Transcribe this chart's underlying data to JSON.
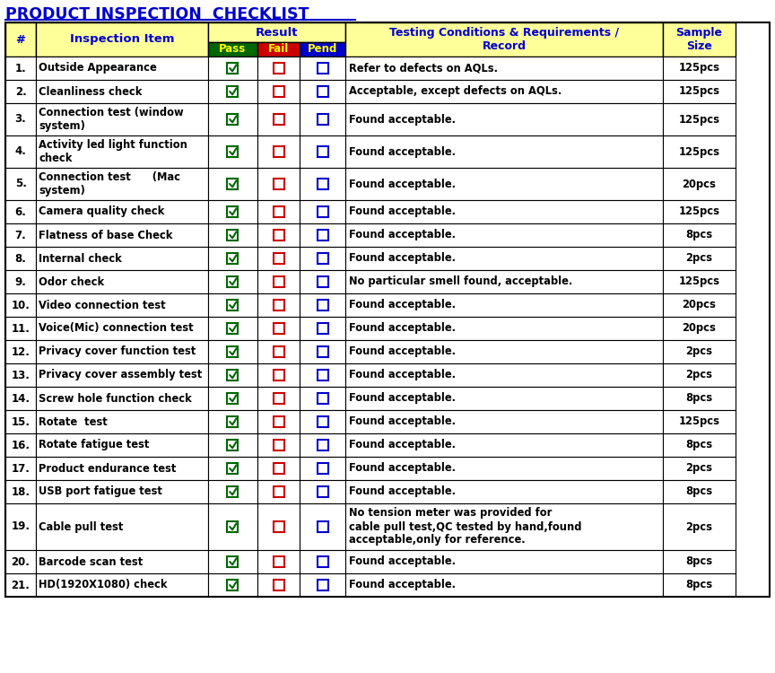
{
  "title": "PRODUCT INSPECTION  CHECKLIST",
  "title_color": "#0000CC",
  "header_bg": "#FFFF99",
  "header_text_color": "#0000CC",
  "pass_bg": "#006600",
  "fail_bg": "#CC0000",
  "pend_bg": "#0000CC",
  "sub_text_color": "#FFFF00",
  "check_color": "#006600",
  "fail_color": "#CC0000",
  "pend_color": "#0000CC",
  "rows": [
    {
      "num": "1.",
      "item": "Outside Appearance",
      "condition": "Refer to defects on AQLs.",
      "sample": "125pcs",
      "lines": 1
    },
    {
      "num": "2.",
      "item": "Cleanliness check",
      "condition": "Acceptable, except defects on AQLs.",
      "sample": "125pcs",
      "lines": 1
    },
    {
      "num": "3.",
      "item": "Connection test (window\nsystem)",
      "condition": "Found acceptable.",
      "sample": "125pcs",
      "lines": 2
    },
    {
      "num": "4.",
      "item": "Activity led light function\ncheck",
      "condition": "Found acceptable.",
      "sample": "125pcs",
      "lines": 2
    },
    {
      "num": "5.",
      "item": "Connection test      (Mac\nsystem)",
      "condition": "Found acceptable.",
      "sample": "20pcs",
      "lines": 2
    },
    {
      "num": "6.",
      "item": "Camera quality check",
      "condition": "Found acceptable.",
      "sample": "125pcs",
      "lines": 1
    },
    {
      "num": "7.",
      "item": "Flatness of base Check",
      "condition": "Found acceptable.",
      "sample": "8pcs",
      "lines": 1
    },
    {
      "num": "8.",
      "item": "Internal check",
      "condition": "Found acceptable.",
      "sample": "2pcs",
      "lines": 1
    },
    {
      "num": "9.",
      "item": "Odor check",
      "condition": "No particular smell found, acceptable.",
      "sample": "125pcs",
      "lines": 1
    },
    {
      "num": "10.",
      "item": "Video connection test",
      "condition": "Found acceptable.",
      "sample": "20pcs",
      "lines": 1
    },
    {
      "num": "11.",
      "item": "Voice(Mic) connection test",
      "condition": "Found acceptable.",
      "sample": "20pcs",
      "lines": 1
    },
    {
      "num": "12.",
      "item": "Privacy cover function test",
      "condition": "Found acceptable.",
      "sample": "2pcs",
      "lines": 1
    },
    {
      "num": "13.",
      "item": "Privacy cover assembly test",
      "condition": "Found acceptable.",
      "sample": "2pcs",
      "lines": 1
    },
    {
      "num": "14.",
      "item": "Screw hole function check",
      "condition": "Found acceptable.",
      "sample": "8pcs",
      "lines": 1
    },
    {
      "num": "15.",
      "item": "Rotate  test",
      "condition": "Found acceptable.",
      "sample": "125pcs",
      "lines": 1
    },
    {
      "num": "16.",
      "item": "Rotate fatigue test",
      "condition": "Found acceptable.",
      "sample": "8pcs",
      "lines": 1
    },
    {
      "num": "17.",
      "item": "Product endurance test",
      "condition": "Found acceptable.",
      "sample": "2pcs",
      "lines": 1
    },
    {
      "num": "18.",
      "item": "USB port fatigue test",
      "condition": "Found acceptable.",
      "sample": "8pcs",
      "lines": 1
    },
    {
      "num": "19.",
      "item": "Cable pull test",
      "condition": "No tension meter was provided for\ncable pull test,QC tested by hand,found\nacceptable,only for reference.",
      "sample": "2pcs",
      "lines": 3
    },
    {
      "num": "20.",
      "item": "Barcode scan test",
      "condition": "Found acceptable.",
      "sample": "8pcs",
      "lines": 1
    },
    {
      "num": "21.",
      "item": "HD(1920X1080) check",
      "condition": "Found acceptable.",
      "sample": "8pcs",
      "lines": 1
    }
  ]
}
